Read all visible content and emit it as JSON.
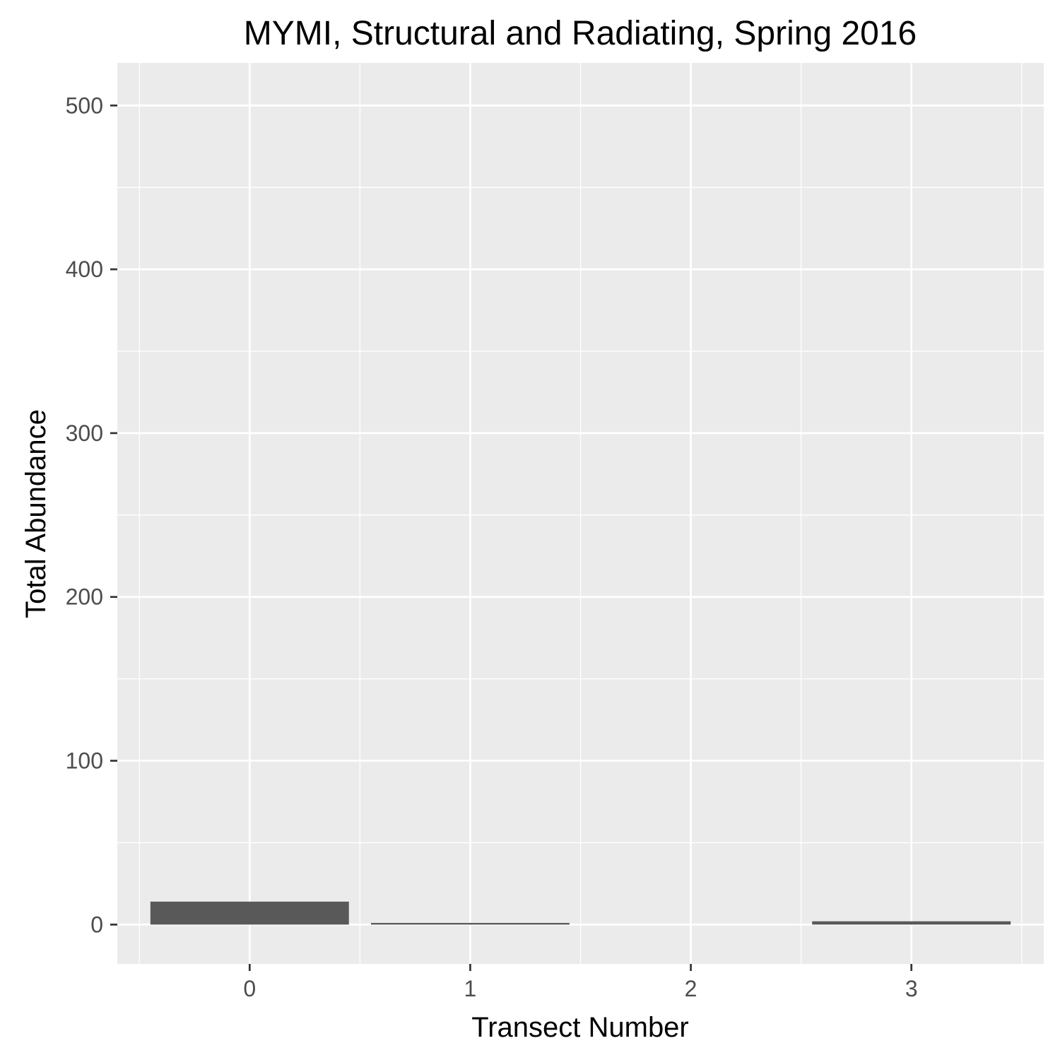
{
  "chart_data": {
    "type": "bar",
    "title": "MYMI, Structural and Radiating, Spring 2016",
    "xlabel": "Transect Number",
    "ylabel": "Total Abundance",
    "categories": [
      "0",
      "1",
      "2",
      "3"
    ],
    "values": [
      14,
      1,
      0,
      2
    ],
    "x_tick_labels": [
      "0",
      "1",
      "2",
      "3"
    ],
    "y_ticks": [
      0,
      100,
      200,
      300,
      400,
      500
    ],
    "y_tick_labels": [
      "0",
      "100",
      "200",
      "300",
      "400",
      "500"
    ],
    "ylim": [
      -24,
      526
    ],
    "grid": true,
    "legend": "none",
    "colors": {
      "bar": "#595959",
      "panel_background": "#ebebeb",
      "grid": "#ffffff",
      "tick_mark": "#333333",
      "tick_label": "#4d4d4d"
    }
  }
}
